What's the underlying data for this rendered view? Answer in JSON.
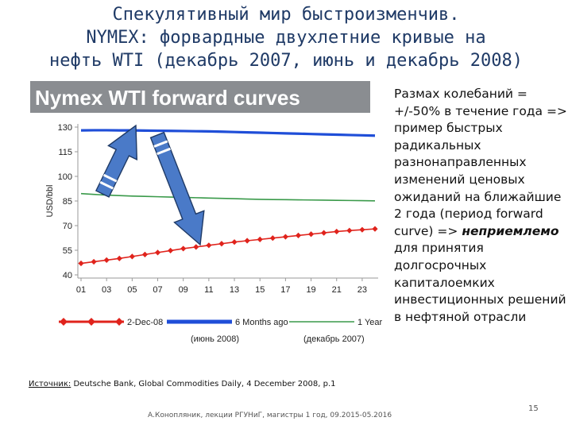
{
  "title": {
    "line1": "Спекулятивный мир быстроизменчив.",
    "line2": "NYMEX: форвардные двухлетние кривые на",
    "line3": "нефть WTI (декабрь 2007, июнь и декабрь 2008)"
  },
  "chart_data": {
    "type": "line",
    "title": "Nymex WTI forward curves",
    "ylabel": "USD/bbl",
    "xlabel": "",
    "ylim": [
      40,
      130
    ],
    "yticks": [
      40,
      55,
      70,
      85,
      100,
      115,
      130
    ],
    "x": [
      1,
      2,
      3,
      4,
      5,
      6,
      7,
      8,
      9,
      10,
      11,
      12,
      13,
      14,
      15,
      16,
      17,
      18,
      19,
      20,
      21,
      22,
      23,
      24
    ],
    "xtick_labels": [
      "01",
      "03",
      "05",
      "07",
      "09",
      "11",
      "13",
      "15",
      "17",
      "19",
      "21",
      "23"
    ],
    "grid": false,
    "legend_position": "bottom",
    "series": [
      {
        "name": "2-Dec-08",
        "color": "#e0231c",
        "marker": "diamond",
        "values": [
          47.0,
          48.0,
          49.0,
          50.0,
          51.2,
          52.4,
          53.6,
          54.8,
          56.0,
          57.0,
          58.0,
          59.0,
          60.0,
          60.8,
          61.6,
          62.4,
          63.2,
          64.0,
          64.8,
          65.6,
          66.4,
          67.0,
          67.5,
          68.0
        ]
      },
      {
        "name": "6 Months ago",
        "color": "#1f4ed8",
        "marker": "none",
        "values": [
          128.0,
          128.1,
          128.1,
          128.0,
          128.0,
          127.9,
          127.8,
          127.7,
          127.6,
          127.5,
          127.4,
          127.2,
          127.0,
          126.8,
          126.6,
          126.4,
          126.2,
          126.0,
          125.8,
          125.6,
          125.4,
          125.2,
          125.0,
          124.8
        ]
      },
      {
        "name": "1 Year ago",
        "color": "#3a9a4a",
        "marker": "none",
        "values": [
          89.5,
          89.0,
          88.6,
          88.3,
          88.0,
          87.8,
          87.6,
          87.4,
          87.2,
          87.0,
          86.8,
          86.6,
          86.4,
          86.2,
          86.0,
          85.9,
          85.8,
          85.7,
          85.6,
          85.5,
          85.4,
          85.3,
          85.2,
          85.1
        ]
      }
    ],
    "annotations": {
      "left_label": "(июнь 2008)",
      "right_label": "(декабрь 2007)"
    }
  },
  "side_text": {
    "part1": "Размах колебаний = +/-50% в течение года => пример быстрых радикальных разнонаправленных изменений ценовых ожиданий на ближайшие 2 года (период forward curve) => ",
    "emph": "неприемлемо",
    "part2": " для принятия долгосрочных капиталоемких инвестиционных решений в нефтяной отрасли"
  },
  "source": {
    "label": "Источник:",
    "text": " Deutsche Bank, Global Commodities Daily, 4 December 2008, p.1"
  },
  "footer": "А.Конопляник, лекции РГУНиГ, магистры 1 год, 09.2015-05.2016",
  "page_number": "15",
  "colors": {
    "title": "#1f3a66",
    "chart_header_bg": "#8a8d91",
    "arrow_fill": "#4a7ac8",
    "arrow_stroke": "#1f3a66"
  }
}
